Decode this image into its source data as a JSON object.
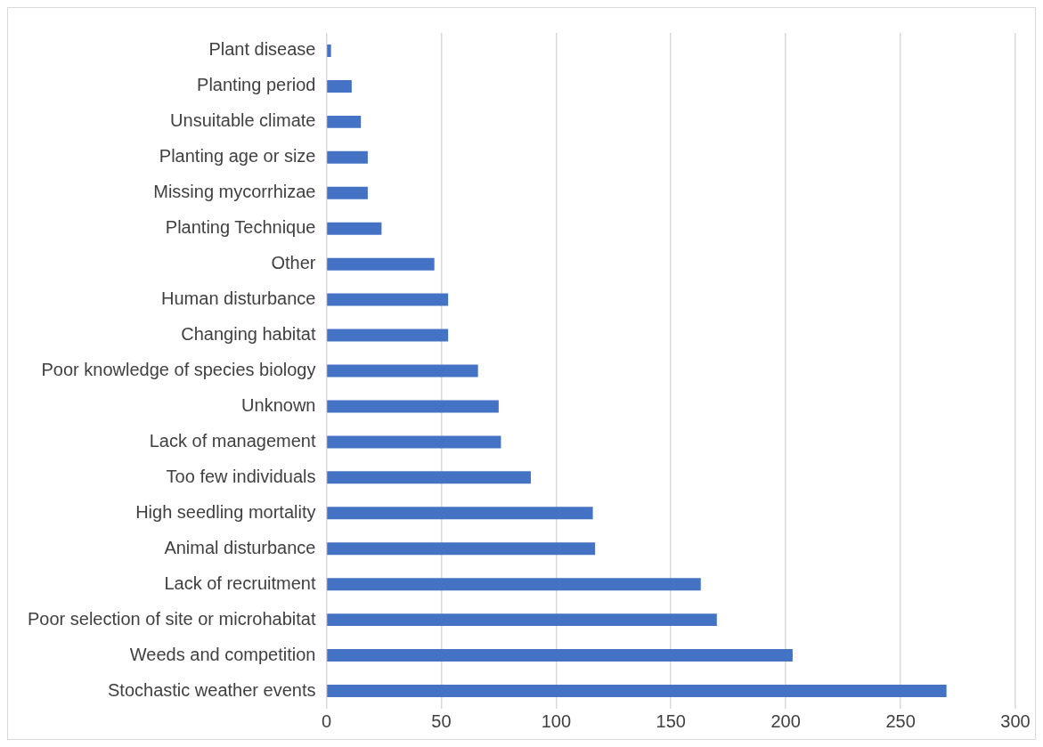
{
  "chart_data": {
    "type": "bar",
    "orientation": "horizontal",
    "categories": [
      "Plant disease",
      "Planting period",
      "Unsuitable climate",
      "Planting age or size",
      "Missing mycorrhizae",
      "Planting Technique",
      "Other",
      "Human disturbance",
      "Changing habitat",
      "Poor knowledge of species biology",
      "Unknown",
      "Lack of management",
      "Too few individuals",
      "High seedling mortality",
      "Animal disturbance",
      "Lack of recruitment",
      "Poor selection of site or microhabitat",
      "Weeds and competition",
      "Stochastic weather events"
    ],
    "values": [
      2,
      11,
      15,
      18,
      18,
      24,
      47,
      53,
      53,
      66,
      75,
      76,
      89,
      116,
      117,
      163,
      170,
      203,
      270
    ],
    "color": "#4472c4",
    "xlim": [
      0,
      300
    ],
    "xticks": [
      0,
      50,
      100,
      150,
      200,
      250,
      300
    ],
    "grid": "x",
    "legend": false
  }
}
